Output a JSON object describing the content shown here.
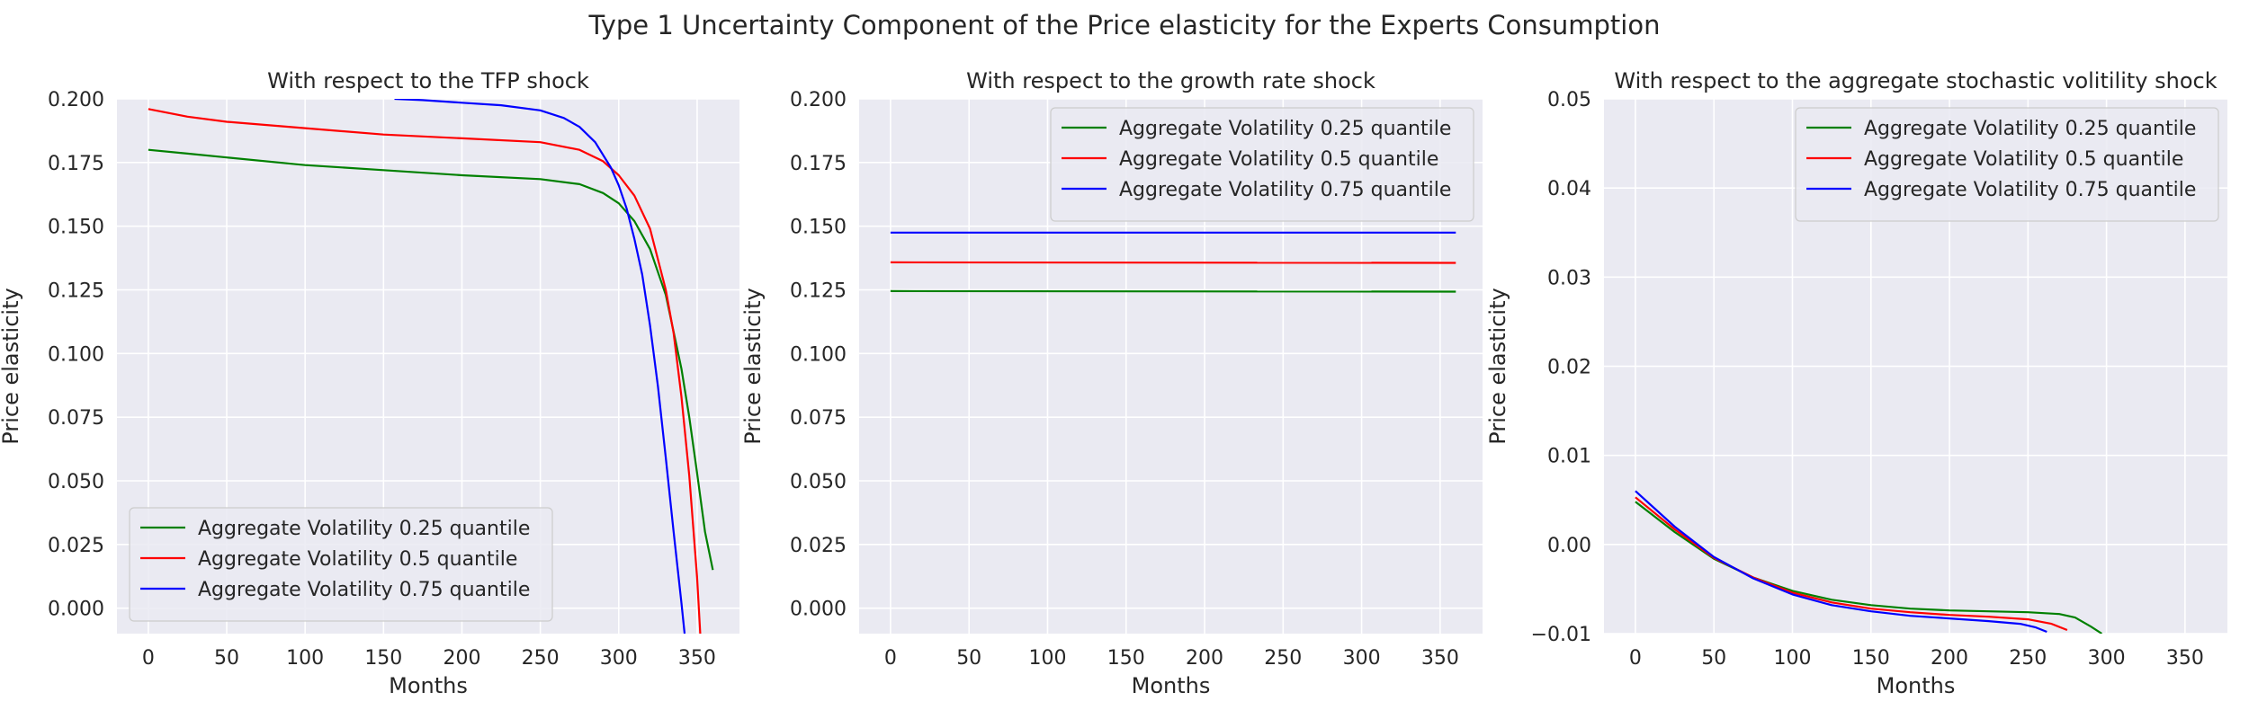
{
  "figure_title": "Type 1 Uncertainty Component of the Price elasticity for the Experts Consumption",
  "colors": {
    "plot_bg": "#eaeaf2",
    "grid": "#ffffff",
    "q25": "#008000",
    "q50": "#ff0000",
    "q75": "#0000ff"
  },
  "chart_data": [
    {
      "type": "line",
      "title": "With respect to the TFP shock",
      "xlabel": "Months",
      "ylabel": "Price elasticity",
      "xlim": [
        -20,
        377
      ],
      "ylim": [
        -0.01,
        0.2
      ],
      "xticks": [
        0,
        50,
        100,
        150,
        200,
        250,
        300,
        350
      ],
      "yticks": [
        0.0,
        0.025,
        0.05,
        0.075,
        0.1,
        0.125,
        0.15,
        0.175,
        0.2
      ],
      "ytick_labels": [
        "0.000",
        "0.025",
        "0.050",
        "0.075",
        "0.100",
        "0.125",
        "0.150",
        "0.175",
        "0.200"
      ],
      "grid": true,
      "legend_position": "lower-left",
      "series": [
        {
          "name": "Aggregate Volatility 0.25 quantile",
          "color_key": "q25",
          "x": [
            0,
            25,
            50,
            100,
            150,
            200,
            250,
            275,
            290,
            300,
            310,
            320,
            330,
            340,
            345,
            350,
            355,
            360
          ],
          "y": [
            0.18,
            0.1785,
            0.177,
            0.174,
            0.172,
            0.17,
            0.1685,
            0.1665,
            0.163,
            0.159,
            0.152,
            0.141,
            0.123,
            0.094,
            0.075,
            0.053,
            0.03,
            0.015
          ]
        },
        {
          "name": "Aggregate Volatility 0.5 quantile",
          "color_key": "q50",
          "x": [
            0,
            25,
            50,
            100,
            150,
            200,
            250,
            275,
            290,
            300,
            310,
            320,
            330,
            335,
            340,
            345,
            350,
            352
          ],
          "y": [
            0.196,
            0.193,
            0.191,
            0.1885,
            0.186,
            0.1845,
            0.183,
            0.18,
            0.1755,
            0.17,
            0.162,
            0.149,
            0.125,
            0.108,
            0.083,
            0.052,
            0.012,
            -0.01
          ]
        },
        {
          "name": "Aggregate Volatility 0.75 quantile",
          "color_key": "q75",
          "x": [
            157,
            175,
            200,
            225,
            250,
            265,
            275,
            285,
            295,
            300,
            305,
            310,
            315,
            320,
            325,
            330,
            335,
            340,
            342
          ],
          "y": [
            0.2,
            0.1995,
            0.1985,
            0.1975,
            0.1955,
            0.1925,
            0.189,
            0.183,
            0.173,
            0.166,
            0.157,
            0.145,
            0.131,
            0.111,
            0.087,
            0.059,
            0.03,
            0.002,
            -0.01
          ]
        }
      ]
    },
    {
      "type": "line",
      "title": "With respect to the growth rate shock",
      "xlabel": "Months",
      "ylabel": "Price elasticity",
      "xlim": [
        -20,
        377
      ],
      "ylim": [
        -0.01,
        0.2
      ],
      "xticks": [
        0,
        50,
        100,
        150,
        200,
        250,
        300,
        350
      ],
      "yticks": [
        0.0,
        0.025,
        0.05,
        0.075,
        0.1,
        0.125,
        0.15,
        0.175,
        0.2
      ],
      "ytick_labels": [
        "0.000",
        "0.025",
        "0.050",
        "0.075",
        "0.100",
        "0.125",
        "0.150",
        "0.175",
        "0.200"
      ],
      "grid": true,
      "legend_position": "upper-right",
      "series": [
        {
          "name": "Aggregate Volatility 0.25 quantile",
          "color_key": "q25",
          "x": [
            0,
            360
          ],
          "y": [
            0.1245,
            0.1243
          ]
        },
        {
          "name": "Aggregate Volatility 0.5 quantile",
          "color_key": "q50",
          "x": [
            0,
            360
          ],
          "y": [
            0.1358,
            0.1356
          ]
        },
        {
          "name": "Aggregate Volatility 0.75 quantile",
          "color_key": "q75",
          "x": [
            0,
            360
          ],
          "y": [
            0.1475,
            0.1475
          ]
        }
      ]
    },
    {
      "type": "line",
      "title": "With respect to the aggregate stochastic volitility shock",
      "xlabel": "Months",
      "ylabel": "Price elasticity",
      "xlim": [
        -20,
        377
      ],
      "ylim": [
        -0.01,
        0.05
      ],
      "xticks": [
        0,
        50,
        100,
        150,
        200,
        250,
        300,
        350
      ],
      "yticks": [
        -0.01,
        0.0,
        0.01,
        0.02,
        0.03,
        0.04,
        0.05
      ],
      "ytick_labels": [
        "−0.01",
        "0.00",
        "0.01",
        "0.02",
        "0.03",
        "0.04",
        "0.05"
      ],
      "grid": true,
      "legend_position": "upper-right",
      "series": [
        {
          "name": "Aggregate Volatility 0.25 quantile",
          "color_key": "q25",
          "x": [
            0,
            25,
            50,
            75,
            100,
            125,
            150,
            175,
            200,
            225,
            250,
            270,
            280,
            290,
            297
          ],
          "y": [
            0.0048,
            0.0014,
            -0.0016,
            -0.0037,
            -0.0052,
            -0.0062,
            -0.0068,
            -0.0072,
            -0.0074,
            -0.0075,
            -0.0076,
            -0.0078,
            -0.0082,
            -0.0092,
            -0.01
          ]
        },
        {
          "name": "Aggregate Volatility 0.5 quantile",
          "color_key": "q50",
          "x": [
            0,
            25,
            50,
            75,
            100,
            125,
            150,
            175,
            200,
            225,
            250,
            265,
            275
          ],
          "y": [
            0.0053,
            0.0017,
            -0.0015,
            -0.0037,
            -0.0054,
            -0.0065,
            -0.0072,
            -0.0076,
            -0.0079,
            -0.0081,
            -0.0084,
            -0.0089,
            -0.0096
          ]
        },
        {
          "name": "Aggregate Volatility 0.75 quantile",
          "color_key": "q75",
          "x": [
            0,
            25,
            50,
            75,
            100,
            125,
            150,
            175,
            200,
            225,
            245,
            255,
            262
          ],
          "y": [
            0.006,
            0.002,
            -0.0014,
            -0.0038,
            -0.0056,
            -0.0068,
            -0.0075,
            -0.008,
            -0.0083,
            -0.0086,
            -0.0089,
            -0.0093,
            -0.0098
          ]
        }
      ]
    }
  ]
}
